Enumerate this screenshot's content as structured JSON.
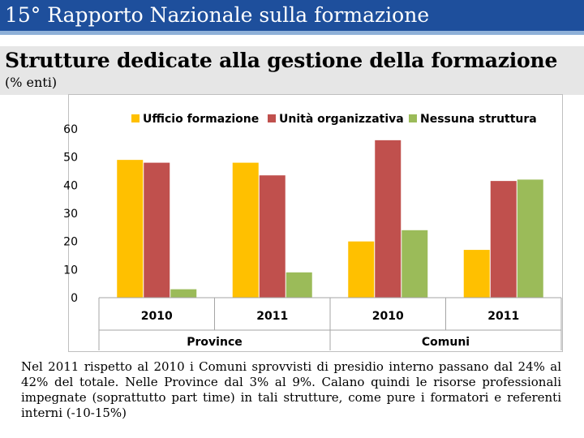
{
  "header": {
    "title": "15° Rapporto Nazionale sulla formazione"
  },
  "slide": {
    "title": "Strutture dedicate alla gestione della formazione",
    "subtitle": "(% enti)"
  },
  "chart_data": {
    "type": "bar",
    "groups": [
      {
        "name": "Province",
        "categories": [
          "2010",
          "2011"
        ]
      },
      {
        "name": "Comuni",
        "categories": [
          "2010",
          "2011"
        ]
      }
    ],
    "categories": [
      "2010",
      "2011",
      "2010",
      "2011"
    ],
    "series": [
      {
        "name": "Ufficio formazione",
        "color": "#ffc000",
        "values": [
          49,
          48,
          20,
          17
        ]
      },
      {
        "name": "Unità organizzativa",
        "color": "#c0504d",
        "values": [
          48,
          43.5,
          56,
          41.5
        ]
      },
      {
        "name": "Nessuna struttura",
        "color": "#9bbb59",
        "values": [
          3,
          9,
          24,
          42
        ]
      }
    ],
    "ylim": [
      0,
      60
    ],
    "yticks": [
      "0",
      "10",
      "20",
      "30",
      "40",
      "50",
      "60"
    ],
    "legend_position": "top",
    "title": "",
    "xlabel": "",
    "ylabel": ""
  },
  "caption": "Nel 2011 rispetto al 2010 i Comuni sprovvisti di presidio interno passano dal 24% al 42% del totale. Nelle Province dal 3% al 9%. Calano quindi le risorse professionali impegnate (soprattutto part time) in tali strutture, come pure i formatori e referenti interni (-10-15%)"
}
